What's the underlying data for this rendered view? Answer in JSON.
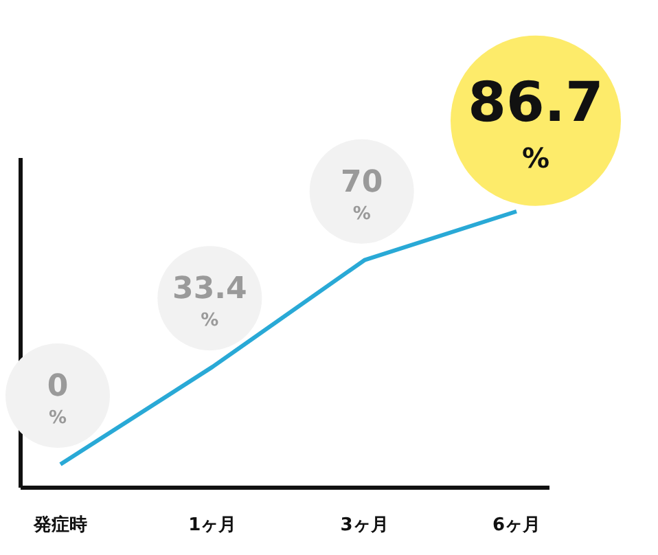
{
  "chart_data": {
    "type": "line",
    "categories": [
      "発症時",
      "1ヶ月",
      "3ヶ月",
      "6ヶ月"
    ],
    "series": [
      {
        "color": "#29a9d6",
        "values": [
          0,
          33.4,
          70,
          86.7
        ],
        "value_labels": [
          "0%",
          "33.4%",
          "70%",
          "86.7%"
        ]
      }
    ],
    "ylim": [
      -8,
      105
    ]
  }
}
